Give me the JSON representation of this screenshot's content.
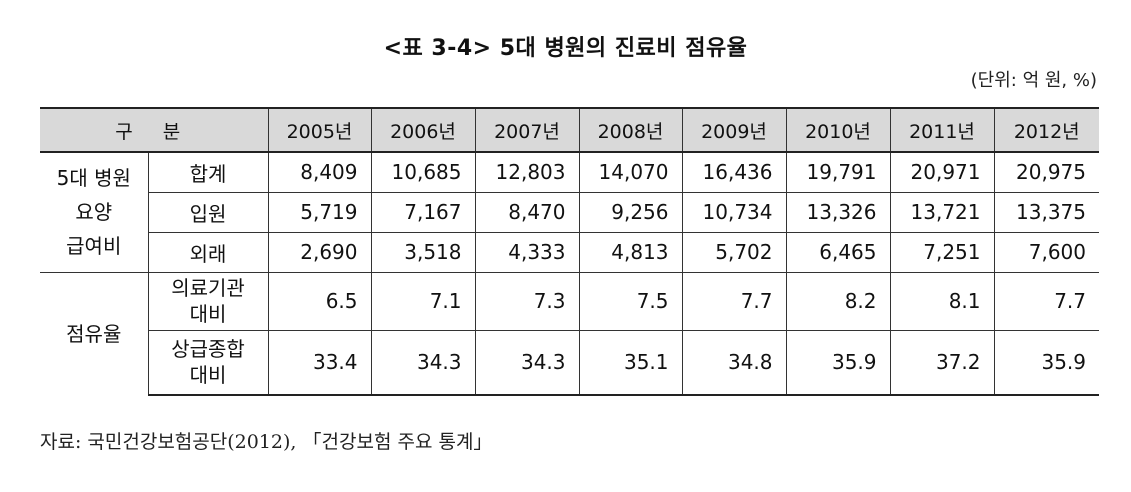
{
  "title": "<표 3-4> 5대 병원의 진료비 점유율",
  "unit": "(단위: 억 원, %)",
  "header": {
    "category": "구 분",
    "years": [
      "2005년",
      "2006년",
      "2007년",
      "2008년",
      "2009년",
      "2010년",
      "2011년",
      "2012년"
    ]
  },
  "groups": {
    "group1": {
      "line1": "5대 병원",
      "line2": "요양",
      "line3": "급여비"
    },
    "group2": {
      "label": "점유율"
    }
  },
  "rows": [
    {
      "label": "합계",
      "values": [
        "8,409",
        "10,685",
        "12,803",
        "14,070",
        "16,436",
        "19,791",
        "20,971",
        "20,975"
      ]
    },
    {
      "label": "입원",
      "values": [
        "5,719",
        "7,167",
        "8,470",
        "9,256",
        "10,734",
        "13,326",
        "13,721",
        "13,375"
      ]
    },
    {
      "label": "외래",
      "values": [
        "2,690",
        "3,518",
        "4,333",
        "4,813",
        "5,702",
        "6,465",
        "7,251",
        "7,600"
      ]
    },
    {
      "label1": "의료기관",
      "label2": "대비",
      "values": [
        "6.5",
        "7.1",
        "7.3",
        "7.5",
        "7.7",
        "8.2",
        "8.1",
        "7.7"
      ]
    },
    {
      "label1": "상급종합",
      "label2": "대비",
      "values": [
        "33.4",
        "34.3",
        "34.3",
        "35.1",
        "34.8",
        "35.9",
        "37.2",
        "35.9"
      ]
    }
  ],
  "source": "자료: 국민건강보험공단(2012), 「건강보험 주요 통계」"
}
